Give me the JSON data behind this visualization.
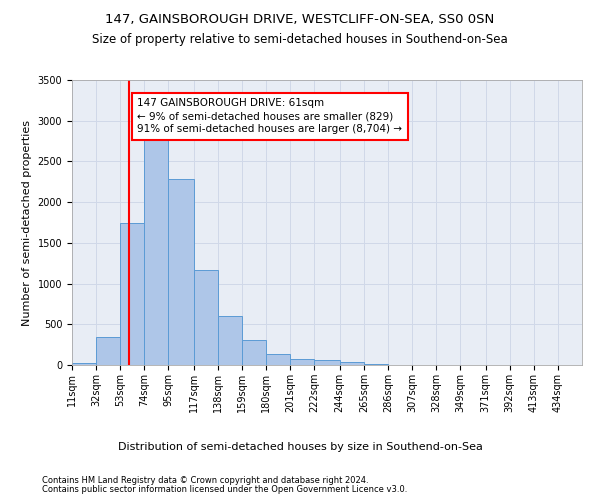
{
  "title1": "147, GAINSBOROUGH DRIVE, WESTCLIFF-ON-SEA, SS0 0SN",
  "title2": "Size of property relative to semi-detached houses in Southend-on-Sea",
  "xlabel": "Distribution of semi-detached houses by size in Southend-on-Sea",
  "ylabel": "Number of semi-detached properties",
  "footnote1": "Contains HM Land Registry data © Crown copyright and database right 2024.",
  "footnote2": "Contains public sector information licensed under the Open Government Licence v3.0.",
  "annotation_title": "147 GAINSBOROUGH DRIVE: 61sqm",
  "annotation_line1": "← 9% of semi-detached houses are smaller (829)",
  "annotation_line2": "91% of semi-detached houses are larger (8,704) →",
  "bar_left_edges": [
    11,
    32,
    53,
    74,
    95,
    117,
    138,
    159,
    180,
    201,
    222,
    244,
    265,
    286,
    307,
    328,
    349,
    371,
    392,
    413
  ],
  "bar_widths": [
    21,
    21,
    21,
    21,
    22,
    21,
    21,
    21,
    21,
    21,
    22,
    21,
    21,
    21,
    21,
    21,
    22,
    21,
    21,
    21
  ],
  "bar_heights": [
    30,
    350,
    1750,
    2920,
    2290,
    1170,
    600,
    305,
    130,
    75,
    60,
    40,
    15,
    5,
    2,
    1,
    1,
    0,
    0,
    0
  ],
  "bar_color": "#aec6e8",
  "bar_edge_color": "#5b9bd5",
  "vline_x": 61,
  "vline_color": "red",
  "vline_linewidth": 1.5,
  "ylim": [
    0,
    3500
  ],
  "yticks": [
    0,
    500,
    1000,
    1500,
    2000,
    2500,
    3000,
    3500
  ],
  "xtick_labels": [
    "11sqm",
    "32sqm",
    "53sqm",
    "74sqm",
    "95sqm",
    "117sqm",
    "138sqm",
    "159sqm",
    "180sqm",
    "201sqm",
    "222sqm",
    "244sqm",
    "265sqm",
    "286sqm",
    "307sqm",
    "328sqm",
    "349sqm",
    "371sqm",
    "392sqm",
    "413sqm",
    "434sqm"
  ],
  "grid_color": "#d0d8e8",
  "bg_color": "#e8edf5",
  "title1_fontsize": 9.5,
  "title2_fontsize": 8.5,
  "xlabel_fontsize": 8,
  "ylabel_fontsize": 8,
  "tick_fontsize": 7,
  "annotation_fontsize": 7.5,
  "footnote_fontsize": 6
}
